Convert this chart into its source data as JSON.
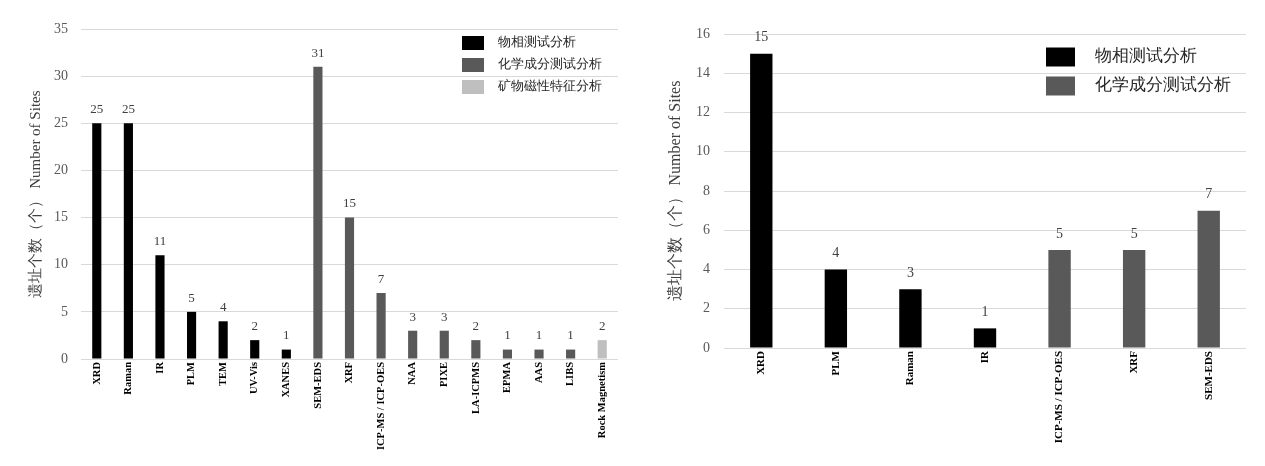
{
  "chart_data": [
    {
      "type": "bar",
      "ylabel": "遗址个数（个） Number of Sites",
      "categories": [
        "XRD",
        "Raman",
        "IR",
        "PLM",
        "TEM",
        "UV-Vis",
        "XANES",
        "SEM-EDS",
        "XRF",
        "ICP-MS / ICP-OES",
        "NAA",
        "PIXE",
        "LA-ICPMS",
        "EPMA",
        "AAS",
        "LIBS",
        "Rock Magnetism"
      ],
      "series": [
        {
          "name": "物相测试分析",
          "color": "#000000",
          "values": [
            25,
            25,
            11,
            5,
            4,
            2,
            1,
            null,
            null,
            null,
            null,
            null,
            null,
            null,
            null,
            null,
            null
          ]
        },
        {
          "name": "化学成分测试分析",
          "color": "#595959",
          "values": [
            null,
            null,
            null,
            null,
            null,
            null,
            null,
            31,
            15,
            7,
            3,
            3,
            2,
            1,
            1,
            1,
            null
          ]
        },
        {
          "name": "矿物磁性特征分析",
          "color": "#bfbfbf",
          "values": [
            null,
            null,
            null,
            null,
            null,
            null,
            null,
            null,
            null,
            null,
            null,
            null,
            null,
            null,
            null,
            null,
            2
          ]
        }
      ],
      "ylim": [
        0,
        35
      ],
      "yticks": [
        0,
        5,
        10,
        15,
        20,
        25,
        30,
        35
      ],
      "grid": "y",
      "legend": "top right",
      "data_labels": true
    },
    {
      "type": "bar",
      "ylabel": "遗址个数（个） Number of Sites",
      "categories": [
        "XRD",
        "PLM",
        "Raman",
        "IR",
        "ICP-MS / ICP-OES",
        "XRF",
        "SEM-EDS"
      ],
      "series": [
        {
          "name": "物相测试分析",
          "color": "#000000",
          "values": [
            15,
            4,
            3,
            1,
            null,
            null,
            null
          ]
        },
        {
          "name": "化学成分测试分析",
          "color": "#595959",
          "values": [
            null,
            null,
            null,
            null,
            5,
            5,
            7
          ]
        }
      ],
      "ylim": [
        0,
        16
      ],
      "yticks": [
        0,
        2,
        4,
        6,
        8,
        10,
        12,
        14,
        16
      ],
      "grid": "y",
      "legend": "top right",
      "data_labels": true
    }
  ]
}
